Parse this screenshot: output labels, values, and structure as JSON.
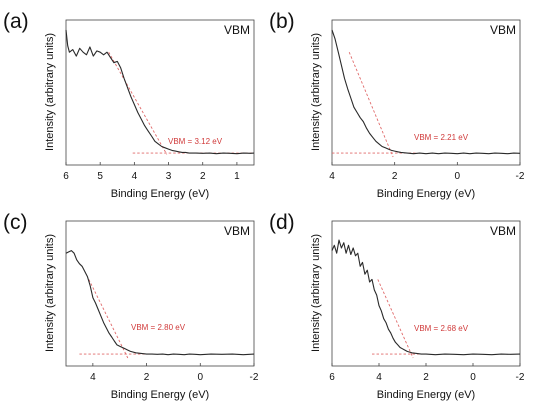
{
  "chart_data": [
    {
      "type": "line",
      "panel_label": "(a)",
      "corner_label": "VBM",
      "xlabel": "Binding Energy (eV)",
      "ylabel": "Intensity (arbitrary units)",
      "xlim": [
        6,
        0.5
      ],
      "x_reversed": true,
      "xticks": [
        6,
        5,
        4,
        3,
        2,
        1
      ],
      "ylim": [
        0,
        1
      ],
      "annotation": "VBM = 3.12 eV",
      "vbm": 3.12,
      "series": [
        {
          "x": [
            6,
            5.95,
            5.9,
            5.8,
            5.7,
            5.6,
            5.5,
            5.4,
            5.3,
            5.2,
            5.1,
            5.0,
            4.9,
            4.8,
            4.7,
            4.6,
            4.5,
            4.4,
            4.3,
            4.2,
            4.1,
            4.0,
            3.9,
            3.8,
            3.7,
            3.6,
            3.5,
            3.4,
            3.3,
            3.2,
            3.1,
            3.0,
            2.9,
            2.8,
            2.7,
            2.6,
            2.5,
            2.4,
            2.2,
            2.0,
            1.8,
            1.6,
            1.4,
            1.2,
            1.0,
            0.8,
            0.6,
            0.5
          ],
          "y": [
            0.97,
            0.85,
            0.8,
            0.82,
            0.77,
            0.83,
            0.8,
            0.78,
            0.84,
            0.77,
            0.81,
            0.8,
            0.78,
            0.8,
            0.76,
            0.72,
            0.73,
            0.68,
            0.6,
            0.53,
            0.46,
            0.4,
            0.34,
            0.29,
            0.24,
            0.2,
            0.16,
            0.12,
            0.1,
            0.08,
            0.07,
            0.06,
            0.05,
            0.045,
            0.04,
            0.035,
            0.035,
            0.03,
            0.03,
            0.028,
            0.03,
            0.025,
            0.03,
            0.028,
            0.025,
            0.03,
            0.028,
            0.03
          ]
        }
      ],
      "fit_lines": [
        {
          "x": [
            4.75,
            3.05
          ],
          "y": [
            0.8,
            0.02
          ]
        },
        {
          "x": [
            4.05,
            0.5
          ],
          "y": [
            0.03,
            0.03
          ]
        }
      ]
    },
    {
      "type": "line",
      "panel_label": "(b)",
      "corner_label": "VBM",
      "xlabel": "Binding Energy (eV)",
      "ylabel": "Intensity (arbitrary units)",
      "xlim": [
        4,
        -2
      ],
      "x_reversed": true,
      "xticks": [
        4,
        2,
        0,
        -2
      ],
      "ylim": [
        0,
        1
      ],
      "annotation": "VBM = 2.21 eV",
      "vbm": 2.21,
      "series": [
        {
          "x": [
            4.0,
            3.9,
            3.8,
            3.7,
            3.6,
            3.5,
            3.4,
            3.3,
            3.2,
            3.1,
            3.0,
            2.9,
            2.8,
            2.7,
            2.6,
            2.5,
            2.4,
            2.3,
            2.2,
            2.1,
            2.0,
            1.9,
            1.8,
            1.6,
            1.4,
            1.2,
            1.0,
            0.8,
            0.6,
            0.4,
            0.2,
            0.0,
            -0.2,
            -0.4,
            -0.6,
            -0.8,
            -1.0,
            -1.2,
            -1.4,
            -1.6,
            -1.8,
            -2.0
          ],
          "y": [
            0.97,
            0.9,
            0.8,
            0.7,
            0.6,
            0.52,
            0.45,
            0.38,
            0.34,
            0.3,
            0.27,
            0.22,
            0.18,
            0.15,
            0.12,
            0.1,
            0.08,
            0.07,
            0.06,
            0.05,
            0.045,
            0.04,
            0.035,
            0.03,
            0.025,
            0.03,
            0.025,
            0.03,
            0.025,
            0.03,
            0.028,
            0.025,
            0.03,
            0.025,
            0.03,
            0.028,
            0.025,
            0.03,
            0.028,
            0.025,
            0.03,
            0.028
          ]
        }
      ],
      "fit_lines": [
        {
          "x": [
            3.45,
            2.05
          ],
          "y": [
            0.8,
            0.0
          ]
        },
        {
          "x": [
            4.0,
            1.3
          ],
          "y": [
            0.03,
            0.03
          ]
        }
      ]
    },
    {
      "type": "line",
      "panel_label": "(c)",
      "corner_label": "VBM",
      "xlabel": "Binding Energy (eV)",
      "ylabel": "Intensity (arbitrary units)",
      "xlim": [
        5,
        -2
      ],
      "x_reversed": true,
      "xticks": [
        4,
        2,
        0,
        -2
      ],
      "ylim": [
        0,
        1
      ],
      "annotation": "VBM = 2.80 eV",
      "vbm": 2.8,
      "series": [
        {
          "x": [
            5.0,
            4.9,
            4.8,
            4.7,
            4.6,
            4.5,
            4.4,
            4.3,
            4.2,
            4.1,
            4.0,
            3.9,
            3.8,
            3.7,
            3.6,
            3.5,
            3.4,
            3.3,
            3.2,
            3.1,
            3.0,
            2.9,
            2.8,
            2.7,
            2.6,
            2.4,
            2.2,
            2.0,
            1.8,
            1.6,
            1.4,
            1.2,
            1.0,
            0.8,
            0.6,
            0.4,
            0.2,
            0.0,
            -0.4,
            -0.8,
            -1.2,
            -1.6,
            -2.0
          ],
          "y": [
            0.8,
            0.81,
            0.82,
            0.8,
            0.75,
            0.72,
            0.7,
            0.66,
            0.62,
            0.55,
            0.46,
            0.42,
            0.37,
            0.32,
            0.27,
            0.23,
            0.19,
            0.16,
            0.13,
            0.1,
            0.09,
            0.08,
            0.07,
            0.06,
            0.05,
            0.04,
            0.035,
            0.03,
            0.03,
            0.028,
            0.03,
            0.025,
            0.03,
            0.028,
            0.025,
            0.03,
            0.028,
            0.025,
            0.03,
            0.028,
            0.03,
            0.025,
            0.03
          ]
        }
      ],
      "fit_lines": [
        {
          "x": [
            4.15,
            2.7
          ],
          "y": [
            0.6,
            0.0
          ]
        },
        {
          "x": [
            4.5,
            2.0
          ],
          "y": [
            0.03,
            0.03
          ]
        }
      ]
    },
    {
      "type": "line",
      "panel_label": "(d)",
      "corner_label": "VBM",
      "xlabel": "Binding Energy (eV)",
      "ylabel": "Intensity (arbitrary units)",
      "xlim": [
        6,
        -2
      ],
      "x_reversed": true,
      "xticks": [
        6,
        4,
        2,
        0,
        -2
      ],
      "ylim": [
        0,
        1
      ],
      "annotation": "VBM = 2.68 eV",
      "vbm": 2.68,
      "series": [
        {
          "x": [
            6.0,
            5.9,
            5.8,
            5.7,
            5.6,
            5.5,
            5.4,
            5.3,
            5.2,
            5.1,
            5.0,
            4.9,
            4.8,
            4.7,
            4.6,
            4.5,
            4.4,
            4.3,
            4.2,
            4.1,
            4.0,
            3.9,
            3.8,
            3.7,
            3.6,
            3.5,
            3.4,
            3.3,
            3.2,
            3.1,
            3.0,
            2.9,
            2.8,
            2.7,
            2.6,
            2.4,
            2.2,
            2.0,
            1.6,
            1.2,
            0.8,
            0.4,
            0.0,
            -0.4,
            -0.8,
            -1.2,
            -1.6,
            -2.0
          ],
          "y": [
            0.82,
            0.86,
            0.8,
            0.9,
            0.84,
            0.88,
            0.8,
            0.86,
            0.79,
            0.84,
            0.78,
            0.8,
            0.7,
            0.73,
            0.64,
            0.67,
            0.58,
            0.6,
            0.52,
            0.48,
            0.4,
            0.36,
            0.3,
            0.27,
            0.22,
            0.19,
            0.15,
            0.12,
            0.1,
            0.08,
            0.07,
            0.06,
            0.05,
            0.045,
            0.04,
            0.035,
            0.03,
            0.03,
            0.025,
            0.03,
            0.028,
            0.025,
            0.03,
            0.028,
            0.025,
            0.03,
            0.028,
            0.03
          ]
        }
      ],
      "fit_lines": [
        {
          "x": [
            4.05,
            2.55
          ],
          "y": [
            0.6,
            0.0
          ]
        },
        {
          "x": [
            4.3,
            2.0
          ],
          "y": [
            0.03,
            0.03
          ]
        }
      ]
    }
  ]
}
